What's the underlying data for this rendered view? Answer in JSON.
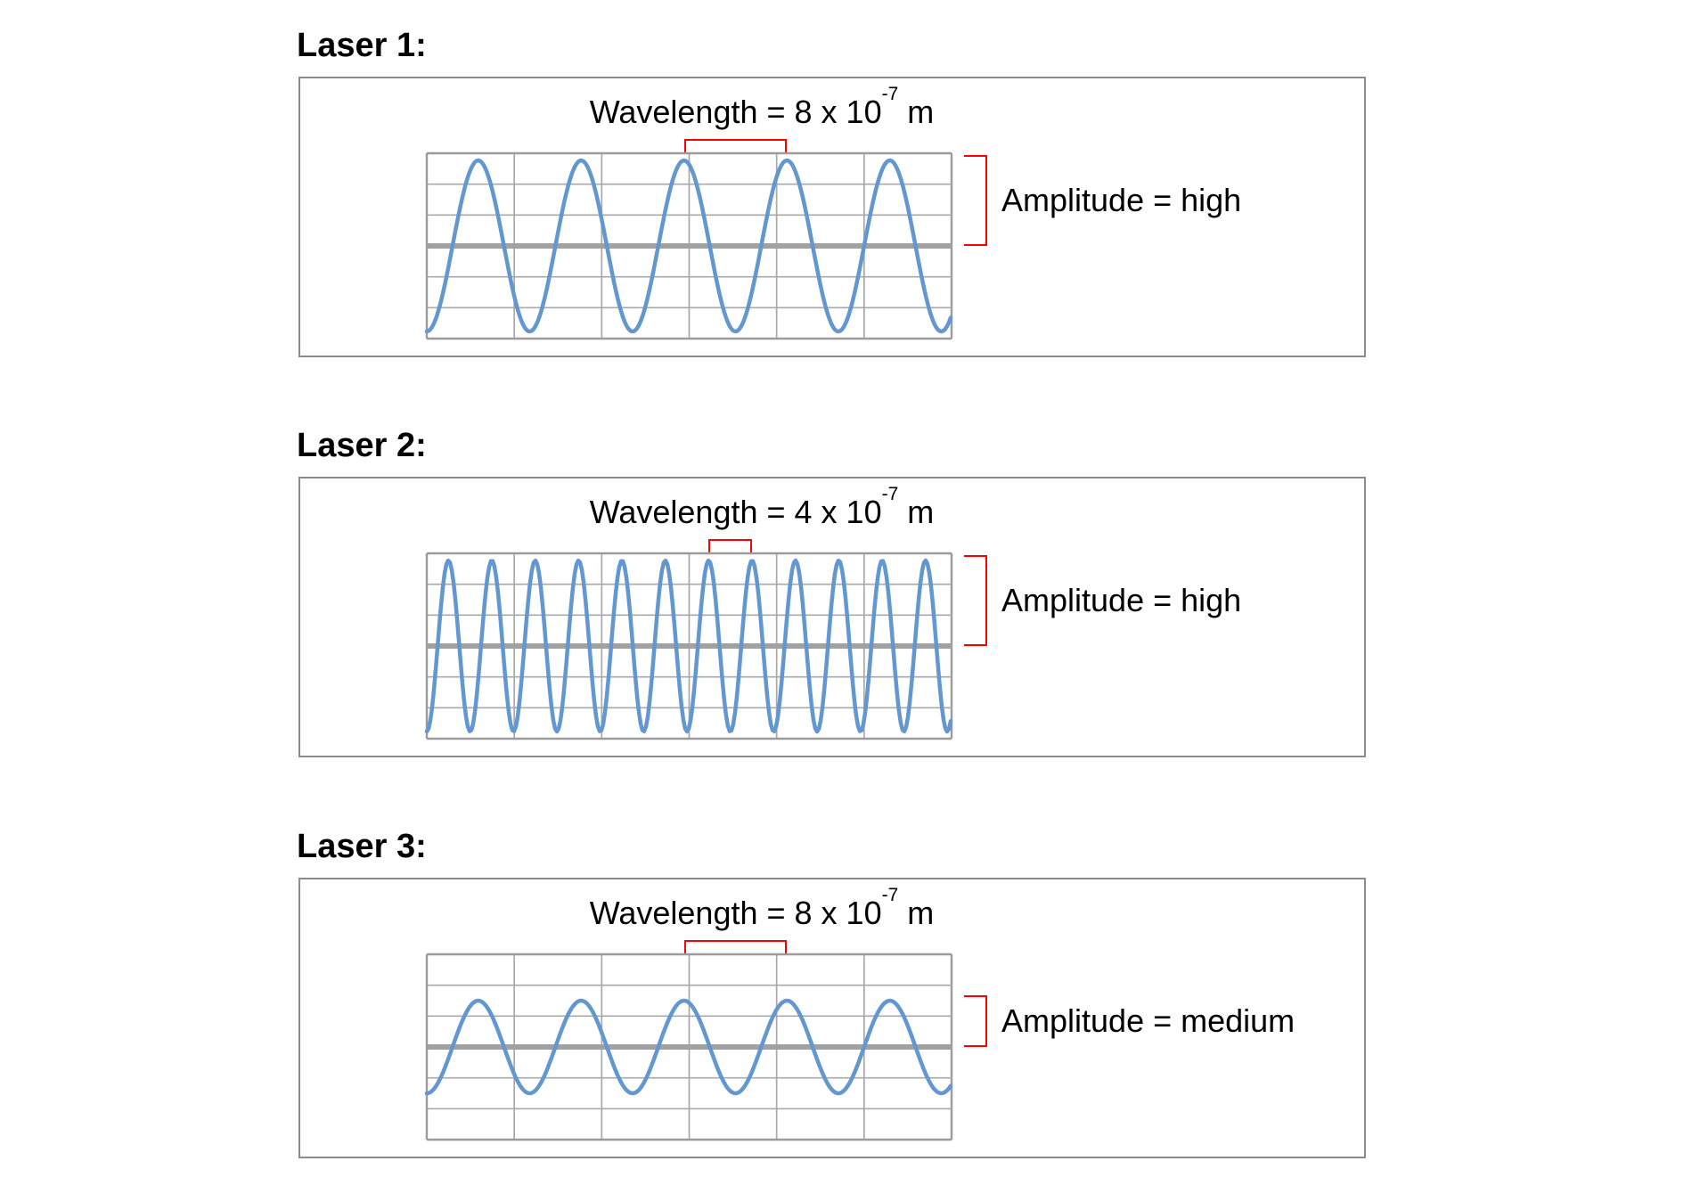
{
  "colors": {
    "wave": "#6297D1",
    "grid_line": "#A9A9A9",
    "grid_border": "#9B9B9B",
    "center_line": "#A1A1A1",
    "bracket": "#FF0000",
    "box_border": "#8C8C8C",
    "text": "#000000",
    "background": "#FFFFFF"
  },
  "grid": {
    "columns": 6,
    "rows": 6
  },
  "panels": [
    {
      "label": "Laser 1:",
      "wavelength": {
        "prefix": "Wavelength = 8 x 10",
        "superscript": "-7",
        "suffix": " m"
      },
      "amplitude_label": "Amplitude = high",
      "wave": {
        "peaks": 5,
        "cycles": 5.1,
        "amplitude_level": "high",
        "wavelength_bracket_start_peak": 3
      }
    },
    {
      "label": "Laser 2:",
      "wavelength": {
        "prefix": "Wavelength = 4 x 10",
        "superscript": "-7",
        "suffix": " m"
      },
      "amplitude_label": "Amplitude = high",
      "wave": {
        "peaks": 12,
        "cycles": 12.1,
        "amplitude_level": "high",
        "wavelength_bracket_start_peak": 7
      }
    },
    {
      "label": "Laser 3:",
      "wavelength": {
        "prefix": "Wavelength = 8 x 10",
        "superscript": "-7",
        "suffix": " m"
      },
      "amplitude_label": "Amplitude = medium",
      "wave": {
        "peaks": 5,
        "cycles": 5.1,
        "amplitude_level": "medium",
        "wavelength_bracket_start_peak": 3
      }
    }
  ],
  "chart_data": [
    {
      "type": "line",
      "title": "Laser 1",
      "wavelength": "8 x 10^-7 m",
      "amplitude": "high",
      "peaks_shown": 5,
      "grid": "6x6",
      "legend_position": "none"
    },
    {
      "type": "line",
      "title": "Laser 2",
      "wavelength": "4 x 10^-7 m",
      "amplitude": "high",
      "peaks_shown": 12,
      "grid": "6x6",
      "legend_position": "none"
    },
    {
      "type": "line",
      "title": "Laser 3",
      "wavelength": "8 x 10^-7 m",
      "amplitude": "medium",
      "peaks_shown": 5,
      "grid": "6x6",
      "legend_position": "none"
    }
  ]
}
